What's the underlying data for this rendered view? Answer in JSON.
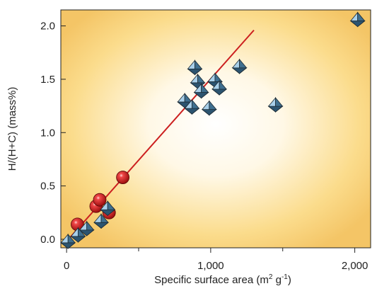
{
  "chart_data": {
    "type": "scatter",
    "title": "",
    "xlabel": "Specific surface area (m",
    "xlabel_sup1": "2",
    "xlabel_mid": " g",
    "xlabel_sup2": "-1",
    "xlabel_end": ")",
    "ylabel": "H/(H+C) (mass%)",
    "xlim": [
      -40,
      2110
    ],
    "ylim": [
      -0.08,
      2.15
    ],
    "x_ticks": [
      0,
      1000,
      2000
    ],
    "x_tick_labels": [
      "0",
      "1,000",
      "2,000"
    ],
    "x_minor_ticks": [
      500,
      1500
    ],
    "y_ticks": [
      0.0,
      0.5,
      1.0,
      1.5,
      2.0
    ],
    "y_tick_labels": [
      "0.0",
      "0.5",
      "1.0",
      "1.5",
      "2.0"
    ],
    "grid": false,
    "background": "radial gradient, white center to amber edges",
    "series": [
      {
        "marker": "red-sphere",
        "color": "#cc1f1f",
        "points": [
          {
            "x": 75,
            "y": 0.14
          },
          {
            "x": 205,
            "y": 0.31
          },
          {
            "x": 230,
            "y": 0.37
          },
          {
            "x": 295,
            "y": 0.25
          },
          {
            "x": 390,
            "y": 0.58
          }
        ]
      },
      {
        "marker": "blue-pyramid",
        "color": "#5a8fb0",
        "points": [
          {
            "x": 10,
            "y": -0.02
          },
          {
            "x": 80,
            "y": 0.04
          },
          {
            "x": 140,
            "y": 0.1
          },
          {
            "x": 240,
            "y": 0.17
          },
          {
            "x": 285,
            "y": 0.29
          },
          {
            "x": 820,
            "y": 1.3
          },
          {
            "x": 870,
            "y": 1.24
          },
          {
            "x": 890,
            "y": 1.61
          },
          {
            "x": 910,
            "y": 1.48
          },
          {
            "x": 935,
            "y": 1.39
          },
          {
            "x": 990,
            "y": 1.23
          },
          {
            "x": 1030,
            "y": 1.49
          },
          {
            "x": 1060,
            "y": 1.42
          },
          {
            "x": 1200,
            "y": 1.62
          },
          {
            "x": 1450,
            "y": 1.26
          },
          {
            "x": 2020,
            "y": 2.06
          }
        ]
      }
    ],
    "fit_line": {
      "color": "#cc1f1f",
      "from": {
        "x": 0,
        "y": -0.02
      },
      "to": {
        "x": 1300,
        "y": 1.96
      }
    }
  }
}
